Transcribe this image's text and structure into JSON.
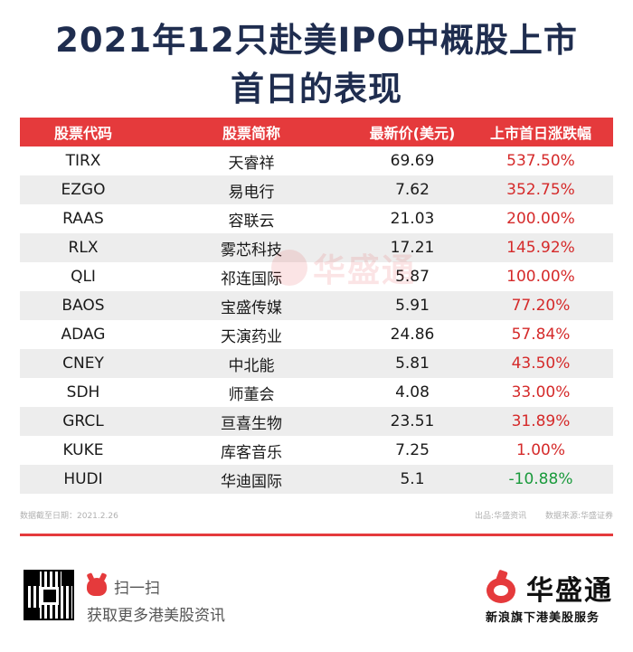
{
  "title": {
    "line1": "2021年12只赴美IPO中概股上市",
    "line2": "首日的表现"
  },
  "table": {
    "headers": [
      "股票代码",
      "股票简称",
      "最新价(美元)",
      "上市首日涨跌幅"
    ],
    "rows": [
      {
        "code": "TIRX",
        "name": "天睿祥",
        "price": "69.69",
        "change": "537.50%"
      },
      {
        "code": "EZGO",
        "name": "易电行",
        "price": "7.62",
        "change": "352.75%"
      },
      {
        "code": "RAAS",
        "name": "容联云",
        "price": "21.03",
        "change": "200.00%"
      },
      {
        "code": "RLX",
        "name": "雾芯科技",
        "price": "17.21",
        "change": "145.92%"
      },
      {
        "code": "QLI",
        "name": "祁连国际",
        "price": "5.87",
        "change": "100.00%"
      },
      {
        "code": "BAOS",
        "name": "宝盛传媒",
        "price": "5.91",
        "change": "77.20%"
      },
      {
        "code": "ADAG",
        "name": "天演药业",
        "price": "24.86",
        "change": "57.84%"
      },
      {
        "code": "CNEY",
        "name": "中北能",
        "price": "5.81",
        "change": "43.50%"
      },
      {
        "code": "SDH",
        "name": "师董会",
        "price": "4.08",
        "change": "33.00%"
      },
      {
        "code": "GRCL",
        "name": "亘喜生物",
        "price": "23.51",
        "change": "31.89%"
      },
      {
        "code": "KUKE",
        "name": "库客音乐",
        "price": "7.25",
        "change": "1.00%"
      },
      {
        "code": "HUDI",
        "name": "华迪国际",
        "price": "5.1",
        "change": "-10.88%"
      }
    ]
  },
  "watermark": "华盛通",
  "footer": {
    "data_date": "数据截至日期：2021.2.26",
    "produced_by": "出品:华盛资讯",
    "data_source": "数据来源:华盛证券"
  },
  "promo": {
    "scan_label": "扫一扫",
    "get_more_label": "获取更多港美股资讯"
  },
  "brand": {
    "name": "华盛通",
    "slogan": "新浪旗下港美股服务"
  },
  "colors": {
    "accent_red": "#e53a3c",
    "title_navy": "#1f2d4f",
    "up_red": "#d52a2a",
    "down_green": "#1a9a3c"
  },
  "icons": {
    "qr": "qr-code-icon",
    "scan": "mascot-icon",
    "brand": "huasheng-logo-icon"
  }
}
